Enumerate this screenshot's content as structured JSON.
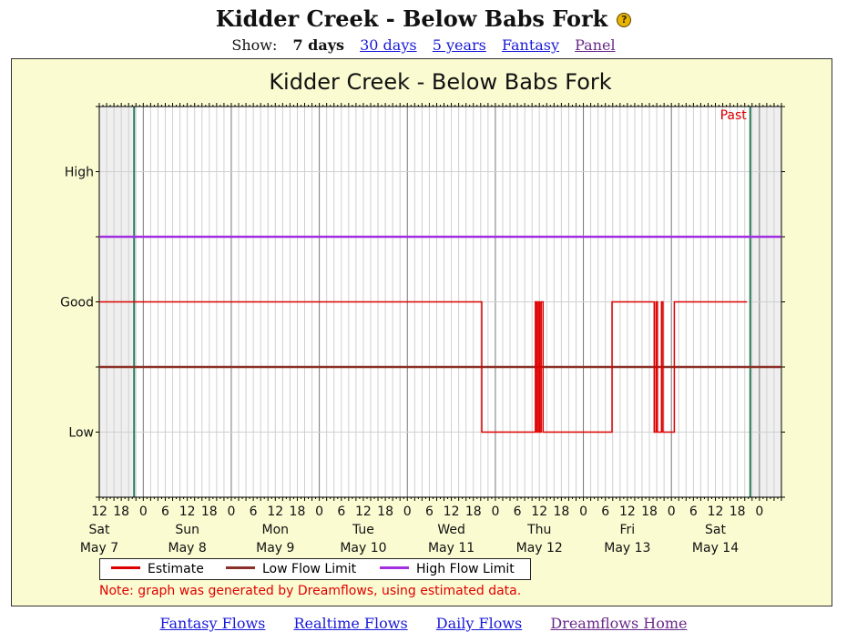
{
  "header": {
    "title": "Kidder Creek - Below Babs Fork",
    "help_glyph": "?"
  },
  "show": {
    "label": "Show:",
    "current": "7 days",
    "links": [
      "30 days",
      "5 years",
      "Fantasy",
      "Panel"
    ]
  },
  "legend": {
    "estimate": "Estimate",
    "low": "Low Flow Limit",
    "high": "High Flow Limit"
  },
  "note": "Note: graph was generated by Dreamflows, using estimated data.",
  "footer": {
    "links": [
      "Fantasy Flows",
      "Realtime Flows",
      "Daily Flows",
      "Dreamflows Home"
    ]
  },
  "colors": {
    "estimate": "#dd0000",
    "low": "#8b3028",
    "high": "#a030e0",
    "past_line": "#2a7a5a"
  },
  "chart_data": {
    "type": "line",
    "title": "Kidder Creek - Below Babs Fork",
    "ylabel": "",
    "yticks": [
      "High",
      "Good",
      "Low"
    ],
    "ylim": [
      0,
      6
    ],
    "xlim_hours_from_sat_noon": [
      0,
      186
    ],
    "x_tick_labels": [
      "12",
      "18",
      "0",
      "6",
      "12",
      "18",
      "0",
      "6",
      "12",
      "18",
      "0",
      "6",
      "12",
      "18",
      "0",
      "6",
      "12",
      "18",
      "0",
      "6",
      "12",
      "18",
      "0",
      "6",
      "12",
      "18",
      "0",
      "6",
      "12",
      "18",
      "0"
    ],
    "days": [
      {
        "name": "Sat",
        "date": "May 7"
      },
      {
        "name": "Sun",
        "date": "May 8"
      },
      {
        "name": "Mon",
        "date": "May 9"
      },
      {
        "name": "Tue",
        "date": "May 10"
      },
      {
        "name": "Wed",
        "date": "May 11"
      },
      {
        "name": "Thu",
        "date": "May 12"
      },
      {
        "name": "Fri",
        "date": "May 13"
      },
      {
        "name": "Sat",
        "date": "May 14"
      }
    ],
    "past_label": "Past",
    "shaded_regions_hours": [
      [
        0,
        9.5
      ],
      [
        177.5,
        186
      ]
    ],
    "past_lines_hours": [
      9.5,
      177.5
    ],
    "grid": true,
    "series": [
      {
        "name": "High Flow Limit",
        "values": [
          [
            0,
            4
          ],
          [
            186,
            4
          ]
        ]
      },
      {
        "name": "Low Flow Limit",
        "values": [
          [
            0,
            2
          ],
          [
            186,
            2
          ]
        ]
      },
      {
        "name": "Estimate",
        "values": [
          [
            0,
            3
          ],
          [
            104.3,
            3
          ],
          [
            104.3,
            1
          ],
          [
            118.9,
            1
          ],
          [
            118.9,
            3
          ],
          [
            119.3,
            3
          ],
          [
            119.3,
            1
          ],
          [
            119.7,
            1
          ],
          [
            119.7,
            3
          ],
          [
            120.1,
            3
          ],
          [
            120.1,
            1
          ],
          [
            120.5,
            1
          ],
          [
            120.5,
            3
          ],
          [
            121,
            3
          ],
          [
            121,
            1
          ],
          [
            139.8,
            1
          ],
          [
            139.8,
            3
          ],
          [
            151.3,
            3
          ],
          [
            151.3,
            1
          ],
          [
            151.8,
            1
          ],
          [
            151.8,
            3
          ],
          [
            152.2,
            3
          ],
          [
            152.2,
            1
          ],
          [
            153.3,
            1
          ],
          [
            153.3,
            3
          ],
          [
            153.7,
            3
          ],
          [
            153.7,
            1
          ],
          [
            156.8,
            1
          ],
          [
            156.8,
            3
          ],
          [
            176.6,
            3
          ]
        ]
      }
    ]
  }
}
